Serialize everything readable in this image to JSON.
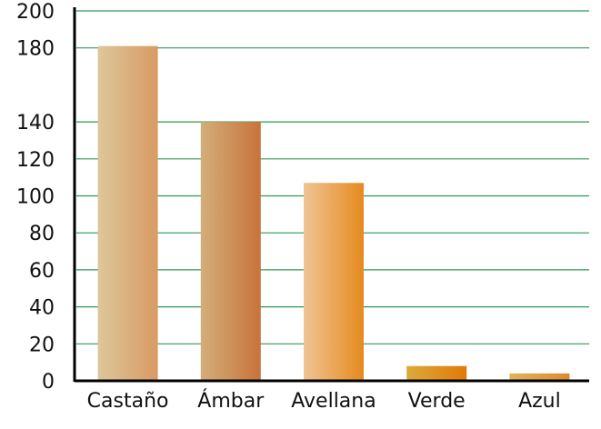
{
  "chart_data": {
    "type": "bar",
    "categories": [
      "Castaño",
      "Ámbar",
      "Avellana",
      "Verde",
      "Azul"
    ],
    "values": [
      181,
      140,
      107,
      8,
      4
    ],
    "y_ticks": [
      0,
      20,
      40,
      60,
      80,
      100,
      120,
      140,
      180,
      200
    ],
    "ylim": [
      0,
      200
    ],
    "title": "",
    "xlabel": "",
    "ylabel": "",
    "grid": true,
    "legend": "none",
    "colors": {
      "gridline": "#2f9a57",
      "axis": "#000000",
      "bars": [
        [
          "#dcc79a",
          "#d99a63"
        ],
        [
          "#d3ae79",
          "#c8733a"
        ],
        [
          "#f0c494",
          "#e68a1e"
        ],
        [
          "#dcaa3b",
          "#e07a08"
        ],
        [
          "#e0b35a",
          "#dd8a2e"
        ]
      ]
    }
  }
}
